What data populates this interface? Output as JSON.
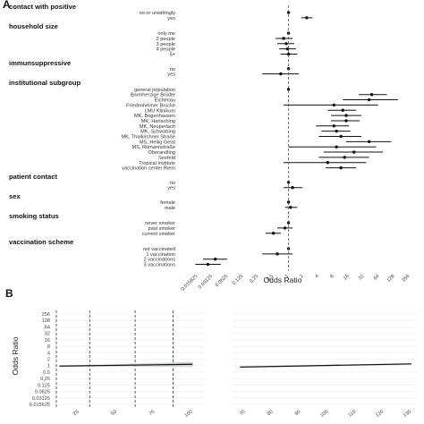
{
  "panels": {
    "a": "A",
    "b": "B"
  },
  "chart_data": [
    {
      "type": "scatter",
      "subtype": "forest",
      "xlabel": "Odds Ratio",
      "x_scale": "log2",
      "x_ticks": [
        "0.015625",
        "0.03125",
        "0.0625",
        "0.125",
        "0.25",
        "0.5",
        "1",
        "2",
        "4",
        "8",
        "16",
        "32",
        "64",
        "128",
        "256"
      ],
      "xlim": [
        0.0078,
        256
      ],
      "reference_line": 1,
      "groups": [
        {
          "name": "contact with positive",
          "rows": [
            {
              "label": "no or unwittingly",
              "or": 1,
              "lo": 1,
              "hi": 1
            },
            {
              "label": "yes",
              "or": 2.3,
              "lo": 1.8,
              "hi": 3.0
            }
          ]
        },
        {
          "name": "household size",
          "rows": [
            {
              "label": "only me",
              "or": 1,
              "lo": 1,
              "hi": 1
            },
            {
              "label": "2 people",
              "or": 0.8,
              "lo": 0.55,
              "hi": 1.2
            },
            {
              "label": "3 people",
              "or": 0.9,
              "lo": 0.6,
              "hi": 1.3
            },
            {
              "label": "4 people",
              "or": 0.95,
              "lo": 0.65,
              "hi": 1.4
            },
            {
              "label": "5+",
              "or": 1.0,
              "lo": 0.7,
              "hi": 1.5
            }
          ]
        },
        {
          "name": "immunsuppressive",
          "rows": [
            {
              "label": "no",
              "or": 1,
              "lo": 1,
              "hi": 1
            },
            {
              "label": "yes",
              "or": 0.7,
              "lo": 0.3,
              "hi": 1.6
            }
          ]
        },
        {
          "name": "institutional subgroup",
          "rows": [
            {
              "label": "general population",
              "or": 1,
              "lo": 1,
              "hi": 1
            },
            {
              "label": "Barmherzige Brüder",
              "or": 45,
              "lo": 25,
              "hi": 90
            },
            {
              "label": "Eichenau",
              "or": 40,
              "lo": 12,
              "hi": 150
            },
            {
              "label": "Friedenheimer Brücke",
              "or": 8,
              "lo": 0.8,
              "hi": 60
            },
            {
              "label": "LMU Klinikum",
              "or": 12,
              "lo": 6,
              "hi": 22
            },
            {
              "label": "MK, Bogenhausen",
              "or": 14,
              "lo": 7,
              "hi": 28
            },
            {
              "label": "MK, Harlaching",
              "or": 14,
              "lo": 7,
              "hi": 26
            },
            {
              "label": "MK, Neuperlach",
              "or": 8,
              "lo": 3.5,
              "hi": 16
            },
            {
              "label": "MK, Schwabing",
              "or": 9,
              "lo": 4.5,
              "hi": 17
            },
            {
              "label": "MK, Thalkirchner Straße",
              "or": 11,
              "lo": 4,
              "hi": 28
            },
            {
              "label": "MS, Heilig Geist",
              "or": 40,
              "lo": 14,
              "hi": 110
            },
            {
              "label": "MS, Rümannstraße",
              "or": 9,
              "lo": 1,
              "hi": 55
            },
            {
              "label": "Oberandling",
              "or": 20,
              "lo": 5,
              "hi": 75
            },
            {
              "label": "Seefeld",
              "or": 13,
              "lo": 4,
              "hi": 40
            },
            {
              "label": "Tropical Institute",
              "or": 6,
              "lo": 0.8,
              "hi": 35
            },
            {
              "label": "vaccination center Riem",
              "or": 11,
              "lo": 5.5,
              "hi": 22
            }
          ]
        },
        {
          "name": "patient contact",
          "rows": [
            {
              "label": "no",
              "or": 1,
              "lo": 1,
              "hi": 1
            },
            {
              "label": "yes",
              "or": 1.2,
              "lo": 0.8,
              "hi": 1.9
            }
          ]
        },
        {
          "name": "sex",
          "rows": [
            {
              "label": "female",
              "or": 1,
              "lo": 1,
              "hi": 1
            },
            {
              "label": "male",
              "or": 1.1,
              "lo": 0.85,
              "hi": 1.5
            }
          ]
        },
        {
          "name": "smoking status",
          "rows": [
            {
              "label": "never smoker",
              "or": 1,
              "lo": 1,
              "hi": 1
            },
            {
              "label": "past smoker",
              "or": 0.85,
              "lo": 0.6,
              "hi": 1.2
            },
            {
              "label": "current smoker",
              "or": 0.5,
              "lo": 0.35,
              "hi": 0.7
            }
          ]
        },
        {
          "name": "vaccination scheme",
          "rows": [
            {
              "label": "not vaccinated",
              "or": 1,
              "lo": 1,
              "hi": 1
            },
            {
              "label": "1 vaccination",
              "or": 0.6,
              "lo": 0.3,
              "hi": 1.2
            },
            {
              "label": "2 vaccinations",
              "or": 0.035,
              "lo": 0.02,
              "hi": 0.06
            },
            {
              "label": "3 vaccinations",
              "or": 0.025,
              "lo": 0.014,
              "hi": 0.045
            }
          ]
        }
      ]
    },
    {
      "type": "line",
      "subtype": "odds-ratio-by-value",
      "ylabel": "Odds Ratio",
      "y_scale": "log2",
      "y_ticks": [
        "256",
        "128",
        "64",
        "32",
        "16",
        "8",
        "4",
        "2",
        "1",
        "0.5",
        "0.25",
        "0.125",
        "0.0625",
        "0.03125",
        "0.015625"
      ],
      "facets": [
        {
          "x_ticks": [
            "25",
            "50",
            "75",
            "100"
          ],
          "xlim": [
            10,
            108
          ],
          "dashed_x": [
            10,
            32,
            62,
            87
          ],
          "x": [
            12,
            100
          ],
          "or": [
            0.95,
            1.15
          ],
          "ci_lo": [
            0.9,
            0.85
          ],
          "ci_hi": [
            1.0,
            1.5
          ]
        },
        {
          "x_ticks": [
            "70",
            "80",
            "90",
            "100",
            "110",
            "120",
            "130"
          ],
          "xlim": [
            65,
            132
          ],
          "dashed_x": [],
          "x": [
            68,
            130
          ],
          "or": [
            0.85,
            1.2
          ],
          "ci_lo": [
            0.8,
            1.1
          ],
          "ci_hi": [
            0.9,
            1.3
          ]
        }
      ]
    }
  ]
}
